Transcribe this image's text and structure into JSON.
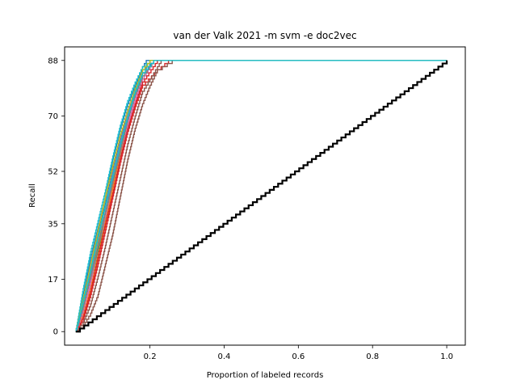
{
  "chart_data": {
    "type": "line",
    "title": "van der Valk 2021 -m svm -e doc2vec",
    "xlabel": "Proportion of labeled records",
    "ylabel": "Recall",
    "xlim": [
      -0.03,
      1.05
    ],
    "ylim": [
      -4.4,
      92.4
    ],
    "x_ticks": [
      0.2,
      0.4,
      0.6,
      0.8,
      1.0
    ],
    "x_tick_labels": [
      "0.2",
      "0.4",
      "0.6",
      "0.8",
      "1.0"
    ],
    "y_ticks": [
      0,
      17,
      35,
      52,
      70,
      88
    ],
    "y_tick_labels": [
      "0",
      "17",
      "35",
      "52",
      "70",
      "88"
    ],
    "grid": false,
    "legend": "none",
    "total_relevant": 88,
    "random_baseline": {
      "color": "#000000",
      "x": [
        0.0,
        1.0
      ],
      "y": [
        0,
        88
      ]
    },
    "series_style": "many simulation runs (stepped recall curves), each reaching 88 between x = 0.19 and x = 0.26 and staying flat to x = 1.0",
    "series": [
      {
        "color": "#1f77b4",
        "x": [
          0,
          0.02,
          0.04,
          0.06,
          0.08,
          0.1,
          0.12,
          0.14,
          0.16,
          0.18,
          0.19,
          1.0
        ],
        "y": [
          0,
          12,
          24,
          34,
          44,
          56,
          66,
          74,
          80,
          86,
          88,
          88
        ]
      },
      {
        "color": "#ff7f0e",
        "x": [
          0,
          0.02,
          0.04,
          0.06,
          0.08,
          0.1,
          0.12,
          0.14,
          0.16,
          0.18,
          0.21,
          1.0
        ],
        "y": [
          0,
          8,
          18,
          28,
          38,
          48,
          58,
          68,
          76,
          83,
          88,
          88
        ]
      },
      {
        "color": "#2ca02c",
        "x": [
          0,
          0.02,
          0.04,
          0.06,
          0.08,
          0.1,
          0.12,
          0.14,
          0.16,
          0.18,
          0.2,
          1.0
        ],
        "y": [
          0,
          10,
          20,
          31,
          42,
          52,
          62,
          71,
          79,
          85,
          88,
          88
        ]
      },
      {
        "color": "#d62728",
        "x": [
          0,
          0.02,
          0.04,
          0.06,
          0.08,
          0.1,
          0.12,
          0.14,
          0.16,
          0.18,
          0.22,
          0.25,
          1.0
        ],
        "y": [
          0,
          4,
          12,
          22,
          33,
          44,
          55,
          65,
          73,
          80,
          85,
          88,
          88
        ]
      },
      {
        "color": "#9467bd",
        "x": [
          0,
          0.02,
          0.04,
          0.06,
          0.08,
          0.1,
          0.12,
          0.14,
          0.16,
          0.18,
          0.21,
          1.0
        ],
        "y": [
          0,
          7,
          16,
          27,
          37,
          47,
          57,
          67,
          75,
          82,
          88,
          88
        ]
      },
      {
        "color": "#8c564b",
        "x": [
          0,
          0.02,
          0.04,
          0.06,
          0.08,
          0.1,
          0.12,
          0.14,
          0.16,
          0.18,
          0.2,
          0.22,
          0.26,
          1.0
        ],
        "y": [
          0,
          2,
          6,
          12,
          22,
          32,
          44,
          56,
          66,
          74,
          80,
          85,
          88,
          88
        ]
      },
      {
        "color": "#e377c2",
        "x": [
          0,
          0.02,
          0.04,
          0.06,
          0.08,
          0.1,
          0.12,
          0.14,
          0.16,
          0.18,
          0.21,
          1.0
        ],
        "y": [
          0,
          6,
          15,
          26,
          36,
          46,
          56,
          66,
          75,
          82,
          88,
          88
        ]
      },
      {
        "color": "#7f7f7f",
        "x": [
          0,
          0.02,
          0.04,
          0.06,
          0.08,
          0.1,
          0.12,
          0.14,
          0.16,
          0.18,
          0.21,
          1.0
        ],
        "y": [
          0,
          9,
          19,
          29,
          39,
          50,
          60,
          69,
          77,
          84,
          88,
          88
        ]
      },
      {
        "color": "#bcbd22",
        "x": [
          0,
          0.02,
          0.04,
          0.06,
          0.08,
          0.1,
          0.12,
          0.14,
          0.16,
          0.18,
          0.21,
          1.0
        ],
        "y": [
          0,
          9,
          20,
          30,
          41,
          51,
          61,
          70,
          78,
          84,
          88,
          88
        ]
      },
      {
        "color": "#17becf",
        "x": [
          0,
          0.02,
          0.04,
          0.06,
          0.08,
          0.1,
          0.12,
          0.14,
          0.16,
          0.18,
          0.2,
          1.0
        ],
        "y": [
          0,
          14,
          26,
          36,
          46,
          57,
          67,
          75,
          81,
          86,
          88,
          88
        ]
      },
      {
        "color": "#1f77b4",
        "x": [
          0,
          0.02,
          0.04,
          0.06,
          0.08,
          0.1,
          0.12,
          0.14,
          0.16,
          0.18,
          0.21,
          1.0
        ],
        "y": [
          0,
          11,
          22,
          32,
          42,
          53,
          63,
          72,
          79,
          85,
          88,
          88
        ]
      },
      {
        "color": "#ff7f0e",
        "x": [
          0,
          0.02,
          0.04,
          0.06,
          0.08,
          0.1,
          0.12,
          0.14,
          0.16,
          0.18,
          0.21,
          1.0
        ],
        "y": [
          0,
          6,
          14,
          25,
          36,
          47,
          58,
          68,
          76,
          83,
          88,
          88
        ]
      },
      {
        "color": "#2ca02c",
        "x": [
          0,
          0.02,
          0.04,
          0.06,
          0.08,
          0.1,
          0.12,
          0.14,
          0.16,
          0.18,
          0.21,
          1.0
        ],
        "y": [
          0,
          8,
          17,
          27,
          38,
          49,
          59,
          69,
          77,
          83,
          88,
          88
        ]
      },
      {
        "color": "#d62728",
        "x": [
          0,
          0.02,
          0.04,
          0.06,
          0.08,
          0.1,
          0.12,
          0.14,
          0.16,
          0.18,
          0.22,
          1.0
        ],
        "y": [
          0,
          5,
          13,
          24,
          35,
          45,
          56,
          66,
          74,
          81,
          88,
          88
        ]
      },
      {
        "color": "#9467bd",
        "x": [
          0,
          0.02,
          0.04,
          0.06,
          0.08,
          0.1,
          0.12,
          0.14,
          0.16,
          0.18,
          0.21,
          1.0
        ],
        "y": [
          0,
          10,
          21,
          31,
          41,
          52,
          62,
          71,
          78,
          84,
          88,
          88
        ]
      },
      {
        "color": "#8c564b",
        "x": [
          0,
          0.02,
          0.04,
          0.06,
          0.08,
          0.1,
          0.12,
          0.14,
          0.16,
          0.18,
          0.21,
          0.23,
          1.0
        ],
        "y": [
          0,
          3,
          9,
          18,
          28,
          39,
          50,
          61,
          70,
          78,
          84,
          88,
          88
        ]
      },
      {
        "color": "#e377c2",
        "x": [
          0,
          0.02,
          0.04,
          0.06,
          0.08,
          0.1,
          0.12,
          0.14,
          0.16,
          0.18,
          0.21,
          1.0
        ],
        "y": [
          0,
          7,
          17,
          28,
          38,
          49,
          59,
          68,
          76,
          83,
          88,
          88
        ]
      },
      {
        "color": "#7f7f7f",
        "x": [
          0,
          0.02,
          0.04,
          0.06,
          0.08,
          0.1,
          0.12,
          0.14,
          0.16,
          0.18,
          0.21,
          1.0
        ],
        "y": [
          0,
          8,
          18,
          28,
          39,
          49,
          59,
          69,
          77,
          83,
          88,
          88
        ]
      },
      {
        "color": "#bcbd22",
        "x": [
          0,
          0.02,
          0.04,
          0.06,
          0.08,
          0.1,
          0.12,
          0.14,
          0.16,
          0.18,
          0.2,
          1.0
        ],
        "y": [
          0,
          11,
          22,
          33,
          44,
          54,
          64,
          72,
          79,
          85,
          88,
          88
        ]
      },
      {
        "color": "#17becf",
        "x": [
          0,
          0.02,
          0.04,
          0.06,
          0.08,
          0.1,
          0.12,
          0.14,
          0.16,
          0.18,
          0.21,
          1.0
        ],
        "y": [
          0,
          10,
          20,
          31,
          41,
          51,
          61,
          70,
          78,
          84,
          88,
          88
        ]
      }
    ]
  }
}
